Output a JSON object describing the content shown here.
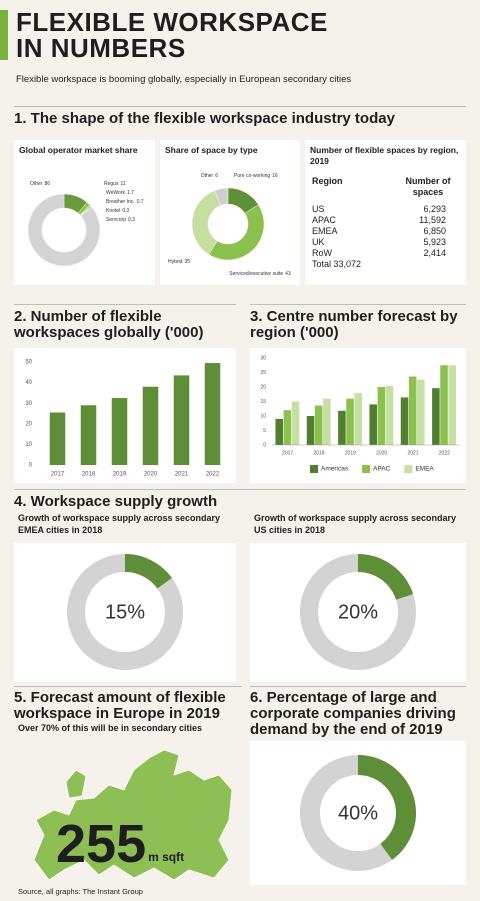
{
  "header": {
    "title": "FLEXIBLE WORKSPACE IN NUMBERS",
    "subtitle": "Flexible workspace is booming globally, especially in European secondary cities"
  },
  "sections": [
    "1. The shape of the flexible workspace industry today",
    "2. Number of flexible workspaces globally ('000)",
    "3. Centre number forecast by region ('000)",
    "4. Workspace supply growth",
    "5. Forecast amount of flexible workspace in Europe in 2019",
    "6. Percentage of large and corporate companies driving demand by the end of 2019"
  ],
  "table": {
    "title": "Number of flexible spaces by region, 2019",
    "header": [
      "Region",
      "Number of spaces"
    ],
    "rows": [
      [
        "US",
        "6,293"
      ],
      [
        "APAC",
        "11,592"
      ],
      [
        "EMEA",
        "6,850"
      ],
      [
        "UK",
        "5,923"
      ],
      [
        "RoW",
        "2,414"
      ]
    ],
    "total": "Total 33,072"
  },
  "figure": {
    "subtitle": "Over 70% of this will be in secondary cities",
    "number": "255",
    "unit": "m sqft"
  },
  "source": "Source, all graphs: The Instant Group",
  "chart_data": [
    {
      "type": "donut",
      "title": "Global operator market share",
      "categories": [
        "Regus",
        "WeWork",
        "Breather Inc.",
        "Knotel",
        "Servcorp",
        "Other"
      ],
      "values": [
        11,
        1.7,
        0.7,
        0.3,
        0.3,
        86
      ],
      "colors": [
        "#6a9a3c",
        "#8cc04f",
        "#b3d68a",
        "#4f7a2c",
        "#c9e0a9",
        "#d4d4d4"
      ]
    },
    {
      "type": "donut",
      "title": "Share of space by type",
      "categories": [
        "Pure co-working",
        "Serviced/executive suite",
        "Hybrid",
        "Other"
      ],
      "values": [
        16,
        43,
        35,
        6
      ],
      "colors": [
        "#5f8f36",
        "#8cc04f",
        "#c5dfa3",
        "#cfcfcf"
      ]
    },
    {
      "type": "bar",
      "categories": [
        "2017",
        "2018",
        "2019",
        "2020",
        "2021",
        "2022"
      ],
      "values": [
        25.5,
        29,
        32.5,
        38,
        43.5,
        49.5
      ],
      "color": "#5e8e38",
      "ylim": [
        0,
        50
      ],
      "yticks": [
        0,
        10,
        20,
        30,
        40,
        50
      ]
    },
    {
      "type": "grouped_bar",
      "categories": [
        "2017",
        "2018",
        "2019",
        "2020",
        "2021",
        "2022"
      ],
      "series": [
        {
          "name": "Americas",
          "color": "#4f7f2f",
          "values": [
            9,
            10,
            11.8,
            14,
            16.4,
            19.6
          ]
        },
        {
          "name": "APAC",
          "color": "#8cc04f",
          "values": [
            12,
            13.6,
            16,
            20,
            23.6,
            27.5
          ]
        },
        {
          "name": "EMEA",
          "color": "#c6e0a4",
          "values": [
            15,
            16,
            17.9,
            20.4,
            22.5,
            27.5
          ]
        }
      ],
      "ylim": [
        0,
        30
      ],
      "yticks": [
        0,
        5,
        10,
        15,
        20,
        25,
        30
      ],
      "legend": "bottom"
    },
    {
      "type": "donut",
      "title": "Growth of workspace supply across secondary EMEA cities in 2018",
      "values": [
        15
      ],
      "value_labels": [
        "15%"
      ],
      "color": "#5e8e38"
    },
    {
      "type": "donut",
      "title": "Growth of workspace supply across secondary US cities in 2018",
      "values": [
        20
      ],
      "value_labels": [
        "20%"
      ],
      "color": "#5e8e38"
    },
    {
      "type": "donut",
      "values": [
        40
      ],
      "value_labels": [
        "40%"
      ],
      "color": "#5e8e38"
    }
  ]
}
